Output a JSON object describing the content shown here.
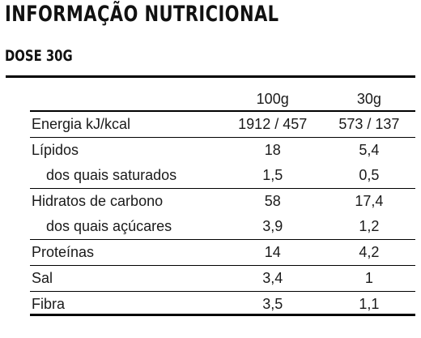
{
  "title": "INFORMAÇÃO NUTRICIONAL",
  "subtitle": "DOSE 30G",
  "table": {
    "headers": [
      "",
      "100g",
      "30g"
    ],
    "rows": [
      {
        "label": "Energia kJ/kcal",
        "v100": "1912 / 457",
        "v30": "573 / 137"
      },
      {
        "label": "Lípidos",
        "v100": "18",
        "v30": "5,4"
      },
      {
        "label": "dos quais saturados",
        "v100": "1,5",
        "v30": "0,5"
      },
      {
        "label": "Hidratos de carbono",
        "v100": "58",
        "v30": "17,4"
      },
      {
        "label": "dos quais açúcares",
        "v100": "3,9",
        "v30": "1,2"
      },
      {
        "label": "Proteínas",
        "v100": "14",
        "v30": "4,2"
      },
      {
        "label": "Sal",
        "v100": "3,4",
        "v30": "1"
      },
      {
        "label": "Fibra",
        "v100": "3,5",
        "v30": "1,1"
      }
    ]
  }
}
